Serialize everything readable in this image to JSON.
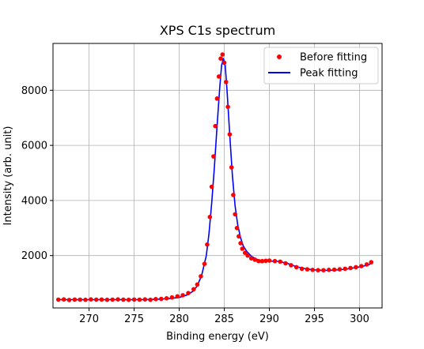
{
  "chart_data": {
    "type": "scatter",
    "title": "XPS C1s spectrum",
    "xlabel": "Binding energy (eV)",
    "ylabel": "Intensity (arb. unit)",
    "xlim": [
      266.0,
      302.5
    ],
    "ylim": [
      100,
      9700
    ],
    "x_ticks": [
      270,
      275,
      280,
      285,
      290,
      295,
      300
    ],
    "y_ticks": [
      2000,
      4000,
      6000,
      8000
    ],
    "grid": true,
    "legend_position": "top-right",
    "series": [
      {
        "name": "Before fitting",
        "style": "markers",
        "color": "#ff0000",
        "x": [
          266.6,
          267.2,
          267.8,
          268.4,
          269.0,
          269.6,
          270.2,
          270.8,
          271.4,
          272.0,
          272.6,
          273.2,
          273.8,
          274.4,
          275.0,
          275.6,
          276.2,
          276.8,
          277.4,
          278.0,
          278.6,
          279.2,
          279.8,
          280.4,
          281.0,
          281.6,
          282.0,
          282.4,
          282.8,
          283.1,
          283.4,
          283.6,
          283.8,
          284.0,
          284.2,
          284.4,
          284.6,
          284.8,
          285.0,
          285.2,
          285.4,
          285.6,
          285.8,
          286.0,
          286.2,
          286.4,
          286.6,
          286.8,
          287.0,
          287.3,
          287.6,
          288.0,
          288.4,
          288.8,
          289.2,
          289.6,
          290.0,
          290.6,
          291.2,
          291.8,
          292.4,
          293.0,
          293.6,
          294.2,
          294.8,
          295.4,
          296.0,
          296.6,
          297.2,
          297.8,
          298.4,
          299.0,
          299.6,
          300.2,
          300.8,
          301.3
        ],
        "y": [
          400,
          410,
          390,
          405,
          400,
          395,
          410,
          400,
          405,
          395,
          400,
          410,
          400,
          395,
          405,
          400,
          410,
          395,
          420,
          430,
          450,
          480,
          520,
          560,
          640,
          780,
          950,
          1250,
          1700,
          2400,
          3400,
          4500,
          5600,
          6700,
          7700,
          8500,
          9150,
          9300,
          9000,
          8300,
          7400,
          6400,
          5200,
          4200,
          3500,
          3000,
          2700,
          2450,
          2250,
          2100,
          2000,
          1900,
          1850,
          1800,
          1800,
          1810,
          1820,
          1800,
          1780,
          1720,
          1650,
          1580,
          1520,
          1500,
          1480,
          1470,
          1470,
          1480,
          1490,
          1500,
          1520,
          1550,
          1580,
          1620,
          1680,
          1760
        ]
      },
      {
        "name": "Peak fitting",
        "style": "line",
        "color": "#0000ff",
        "x": [
          266.6,
          268.0,
          270.0,
          272.0,
          274.0,
          276.0,
          278.0,
          279.0,
          280.0,
          280.8,
          281.5,
          282.0,
          282.5,
          283.0,
          283.3,
          283.6,
          283.9,
          284.2,
          284.5,
          284.7,
          284.9,
          285.1,
          285.3,
          285.6,
          285.9,
          286.2,
          286.5,
          286.8,
          287.1,
          287.5,
          288.0,
          288.5,
          289.0,
          290.0,
          291.0,
          292.0,
          293.0,
          294.0,
          295.0,
          296.0,
          297.0,
          298.0,
          299.0,
          300.0,
          301.0,
          301.3
        ],
        "y": [
          400,
          400,
          400,
          400,
          400,
          400,
          420,
          440,
          480,
          560,
          700,
          900,
          1300,
          2000,
          2800,
          3900,
          5200,
          6700,
          8100,
          8900,
          9150,
          8900,
          8000,
          6400,
          4900,
          3800,
          3100,
          2650,
          2350,
          2150,
          1980,
          1880,
          1820,
          1800,
          1790,
          1720,
          1600,
          1520,
          1480,
          1460,
          1470,
          1490,
          1530,
          1590,
          1660,
          1720
        ]
      }
    ]
  }
}
